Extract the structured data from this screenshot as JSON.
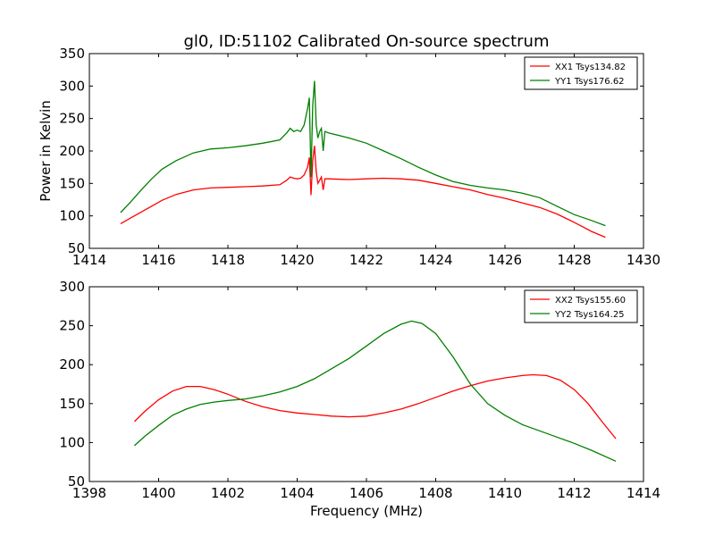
{
  "title": "gl0, ID:51102 Calibrated On-source spectrum",
  "ylabel": "Power in Kelvin",
  "xlabel": "Frequency (MHz)",
  "colors": {
    "red": "#ff0000",
    "green": "#008000"
  },
  "chart_data": [
    {
      "type": "line",
      "xlim": [
        1414,
        1430
      ],
      "ylim": [
        50,
        350
      ],
      "xticks": [
        1414,
        1416,
        1418,
        1420,
        1422,
        1424,
        1426,
        1428,
        1430
      ],
      "yticks": [
        50,
        100,
        150,
        200,
        250,
        300,
        350
      ],
      "legend_position": "top-right",
      "series": [
        {
          "name": "XX1 Tsys134.82",
          "color": "#ff0000",
          "x": [
            1414.9,
            1415.2,
            1415.5,
            1415.8,
            1416.1,
            1416.5,
            1417.0,
            1417.5,
            1418.0,
            1418.5,
            1419.0,
            1419.5,
            1419.7,
            1419.8,
            1419.9,
            1420.0,
            1420.1,
            1420.2,
            1420.3,
            1420.35,
            1420.4,
            1420.45,
            1420.5,
            1420.55,
            1420.6,
            1420.65,
            1420.7,
            1420.75,
            1420.8,
            1420.9,
            1421.5,
            1422.0,
            1422.5,
            1423.0,
            1423.5,
            1424.0,
            1424.5,
            1425.0,
            1425.5,
            1426.0,
            1426.5,
            1427.0,
            1427.5,
            1428.0,
            1428.5,
            1428.9
          ],
          "y": [
            88,
            97,
            106,
            115,
            124,
            133,
            140,
            143,
            144,
            145,
            146,
            148,
            155,
            160,
            158,
            157,
            158,
            163,
            175,
            190,
            132,
            185,
            208,
            168,
            150,
            155,
            160,
            140,
            157,
            157,
            156,
            157,
            158,
            157,
            155,
            150,
            145,
            140,
            133,
            127,
            120,
            113,
            103,
            90,
            76,
            67
          ]
        },
        {
          "name": "YY1 Tsys176.62",
          "color": "#008000",
          "x": [
            1414.9,
            1415.2,
            1415.5,
            1415.8,
            1416.1,
            1416.5,
            1417.0,
            1417.5,
            1418.0,
            1418.5,
            1419.0,
            1419.5,
            1419.7,
            1419.8,
            1419.9,
            1420.0,
            1420.1,
            1420.2,
            1420.3,
            1420.35,
            1420.4,
            1420.45,
            1420.5,
            1420.55,
            1420.6,
            1420.65,
            1420.7,
            1420.75,
            1420.8,
            1420.9,
            1421.5,
            1422.0,
            1422.5,
            1423.0,
            1423.5,
            1424.0,
            1424.5,
            1425.0,
            1425.5,
            1426.0,
            1426.5,
            1427.0,
            1427.5,
            1428.0,
            1428.5,
            1428.9
          ],
          "y": [
            105,
            122,
            140,
            157,
            172,
            185,
            197,
            203,
            205,
            208,
            212,
            217,
            228,
            235,
            230,
            232,
            230,
            240,
            265,
            282,
            160,
            270,
            308,
            240,
            220,
            230,
            235,
            200,
            230,
            228,
            220,
            212,
            200,
            188,
            175,
            163,
            153,
            147,
            143,
            140,
            135,
            128,
            115,
            102,
            93,
            85
          ]
        }
      ]
    },
    {
      "type": "line",
      "xlim": [
        1398,
        1414
      ],
      "ylim": [
        50,
        300
      ],
      "xticks": [
        1398,
        1400,
        1402,
        1404,
        1406,
        1408,
        1410,
        1412,
        1414
      ],
      "yticks": [
        50,
        100,
        150,
        200,
        250,
        300
      ],
      "legend_position": "top-right",
      "series": [
        {
          "name": "XX2 Tsys155.60",
          "color": "#ff0000",
          "x": [
            1399.3,
            1399.6,
            1400.0,
            1400.4,
            1400.8,
            1401.2,
            1401.6,
            1402.0,
            1402.5,
            1403.0,
            1403.5,
            1404.0,
            1404.5,
            1405.0,
            1405.5,
            1406.0,
            1406.5,
            1407.0,
            1407.5,
            1408.0,
            1408.5,
            1409.0,
            1409.5,
            1410.0,
            1410.5,
            1410.8,
            1411.2,
            1411.6,
            1412.0,
            1412.4,
            1412.8,
            1413.2
          ],
          "y": [
            127,
            140,
            155,
            166,
            172,
            172,
            168,
            162,
            153,
            146,
            141,
            138,
            136,
            134,
            133,
            134,
            138,
            143,
            150,
            158,
            166,
            173,
            179,
            183,
            186,
            187,
            186,
            180,
            168,
            150,
            127,
            105
          ]
        },
        {
          "name": "YY2 Tsys164.25",
          "color": "#008000",
          "x": [
            1399.3,
            1399.6,
            1400.0,
            1400.4,
            1400.8,
            1401.2,
            1401.6,
            1402.0,
            1402.5,
            1403.0,
            1403.5,
            1404.0,
            1404.5,
            1405.0,
            1405.5,
            1406.0,
            1406.5,
            1407.0,
            1407.3,
            1407.6,
            1408.0,
            1408.5,
            1409.0,
            1409.5,
            1410.0,
            1410.5,
            1411.0,
            1411.5,
            1412.0,
            1412.5,
            1413.2
          ],
          "y": [
            96,
            108,
            122,
            135,
            143,
            149,
            152,
            154,
            156,
            160,
            165,
            172,
            182,
            195,
            208,
            224,
            240,
            252,
            256,
            253,
            240,
            210,
            175,
            150,
            135,
            123,
            115,
            107,
            99,
            90,
            76
          ]
        }
      ]
    }
  ]
}
